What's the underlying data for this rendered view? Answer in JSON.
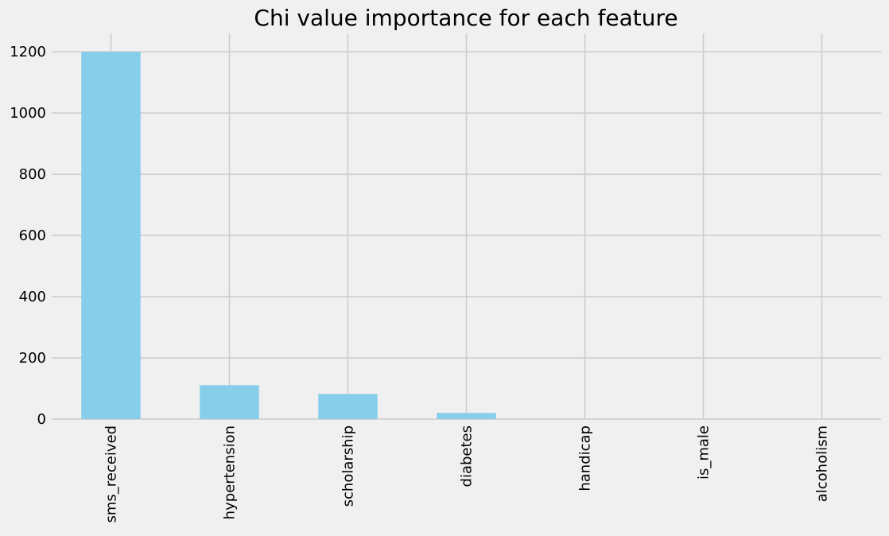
{
  "chart_data": {
    "type": "bar",
    "title": "Chi value importance for each feature",
    "xlabel": "",
    "ylabel": "",
    "categories": [
      "sms_received",
      "hypertension",
      "scholarship",
      "diabetes",
      "handicap",
      "is_male",
      "alcoholism"
    ],
    "values": [
      1200,
      111,
      82,
      20,
      0.5,
      0.1,
      0.1
    ],
    "ylim": [
      0,
      1260
    ],
    "yticks": [
      0,
      200,
      400,
      600,
      800,
      1000,
      1200
    ],
    "grid": true,
    "legend": "none",
    "colors": {
      "background": "#f0f0f0",
      "bar": "#87ceeb",
      "grid": "#cbcbcb",
      "text": "#000000"
    }
  }
}
